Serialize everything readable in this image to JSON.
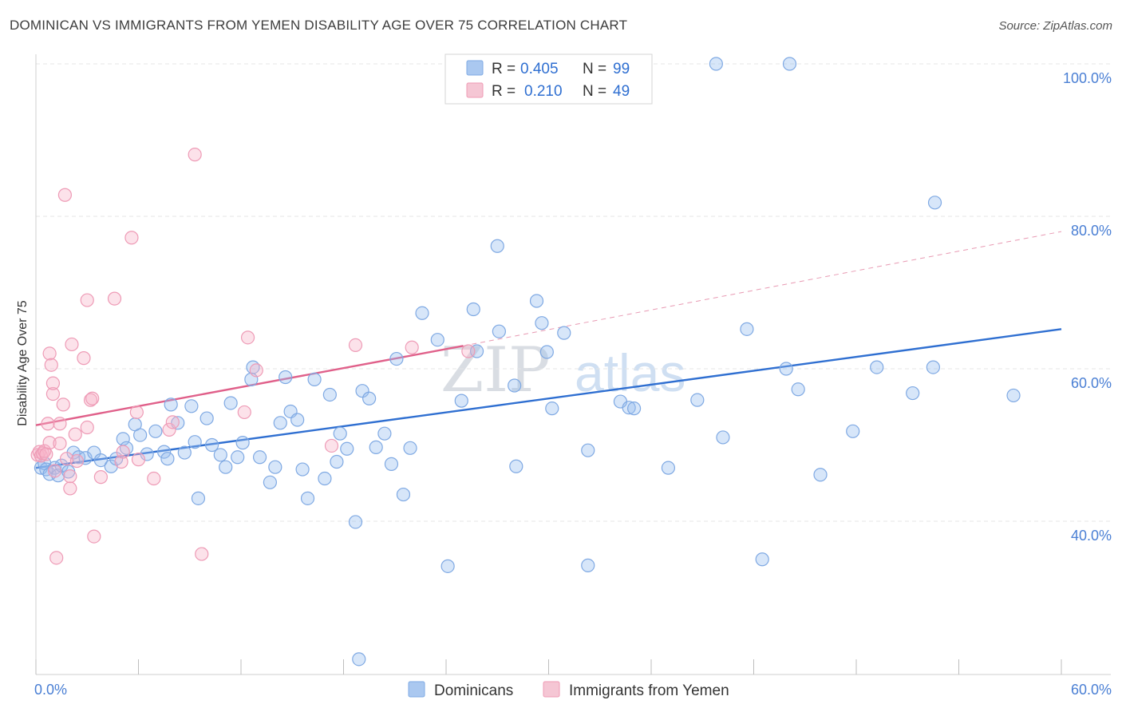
{
  "title": "DOMINICAN VS IMMIGRANTS FROM YEMEN DISABILITY AGE OVER 75 CORRELATION CHART",
  "source": "Source: ZipAtlas.com",
  "watermark": {
    "part1": "ZIP",
    "part2": "atlas"
  },
  "legend": {
    "rows": [
      {
        "r_label": "R =",
        "r_value": "0.405",
        "n_label": "N =",
        "n_value": "99",
        "color": "#aac8f0"
      },
      {
        "r_label": "R =",
        "r_value": "0.210",
        "n_label": "N =",
        "n_value": "49",
        "color": "#f5b8cb"
      }
    ]
  },
  "bottom_legend": [
    {
      "label": "Dominicans",
      "color": "#aac8f0"
    },
    {
      "label": "Immigrants from Yemen",
      "color": "#f5b8cb"
    }
  ],
  "chart_data": {
    "type": "scatter",
    "title": "DOMINICAN VS IMMIGRANTS FROM YEMEN DISABILITY AGE OVER 75 CORRELATION CHART",
    "xlabel": "",
    "ylabel": "Disability Age Over 75",
    "xlim": [
      0,
      60
    ],
    "ylim": [
      20,
      102
    ],
    "x_tick_labels": [
      "0.0%",
      "60.0%"
    ],
    "y_ticks": [
      40,
      60,
      80,
      100
    ],
    "y_tick_labels": [
      "40.0%",
      "60.0%",
      "80.0%",
      "100.0%"
    ],
    "grid": true,
    "legend_position": "top-center",
    "series": [
      {
        "name": "Dominicans",
        "color": "#6fa3e8",
        "trend": {
          "x": [
            0,
            60
          ],
          "y": [
            47.0,
            65.2
          ],
          "color": "#2f6fd1"
        },
        "points": [
          [
            0.3,
            47.0
          ],
          [
            0.5,
            47.6
          ],
          [
            0.6,
            46.8
          ],
          [
            0.8,
            46.2
          ],
          [
            1.1,
            47.0
          ],
          [
            1.3,
            46.0
          ],
          [
            1.5,
            47.3
          ],
          [
            1.9,
            46.5
          ],
          [
            2.2,
            49.0
          ],
          [
            2.5,
            48.4
          ],
          [
            2.9,
            48.3
          ],
          [
            3.4,
            49.0
          ],
          [
            3.8,
            48.0
          ],
          [
            4.4,
            47.2
          ],
          [
            4.7,
            48.2
          ],
          [
            5.1,
            50.8
          ],
          [
            5.3,
            49.6
          ],
          [
            5.8,
            52.7
          ],
          [
            6.1,
            51.3
          ],
          [
            6.5,
            48.8
          ],
          [
            7.0,
            51.8
          ],
          [
            7.5,
            49.1
          ],
          [
            7.7,
            48.2
          ],
          [
            7.9,
            55.3
          ],
          [
            8.3,
            52.9
          ],
          [
            8.7,
            49.0
          ],
          [
            9.1,
            55.1
          ],
          [
            9.3,
            50.4
          ],
          [
            9.5,
            43.0
          ],
          [
            10.0,
            53.5
          ],
          [
            10.3,
            50.0
          ],
          [
            10.8,
            48.7
          ],
          [
            11.1,
            47.1
          ],
          [
            11.4,
            55.5
          ],
          [
            11.8,
            48.4
          ],
          [
            12.1,
            50.3
          ],
          [
            12.6,
            58.6
          ],
          [
            12.7,
            60.2
          ],
          [
            13.1,
            48.4
          ],
          [
            13.7,
            45.1
          ],
          [
            14.0,
            47.1
          ],
          [
            14.3,
            52.9
          ],
          [
            14.6,
            58.9
          ],
          [
            14.9,
            54.4
          ],
          [
            15.3,
            53.3
          ],
          [
            15.6,
            46.8
          ],
          [
            15.9,
            43.0
          ],
          [
            16.3,
            58.6
          ],
          [
            16.9,
            45.6
          ],
          [
            17.2,
            56.6
          ],
          [
            17.6,
            47.8
          ],
          [
            17.8,
            51.5
          ],
          [
            18.2,
            49.5
          ],
          [
            18.7,
            39.9
          ],
          [
            19.1,
            57.1
          ],
          [
            19.5,
            56.1
          ],
          [
            19.9,
            49.7
          ],
          [
            20.4,
            51.5
          ],
          [
            20.8,
            47.5
          ],
          [
            21.1,
            61.3
          ],
          [
            21.5,
            43.5
          ],
          [
            21.9,
            49.6
          ],
          [
            22.6,
            67.3
          ],
          [
            23.5,
            63.8
          ],
          [
            24.1,
            34.1
          ],
          [
            24.9,
            55.8
          ],
          [
            25.6,
            67.8
          ],
          [
            25.8,
            62.3
          ],
          [
            27.0,
            76.1
          ],
          [
            27.1,
            64.9
          ],
          [
            28.0,
            57.8
          ],
          [
            28.1,
            47.2
          ],
          [
            29.3,
            68.9
          ],
          [
            29.6,
            66.0
          ],
          [
            29.9,
            62.2
          ],
          [
            30.2,
            54.8
          ],
          [
            30.9,
            64.7
          ],
          [
            32.3,
            49.3
          ],
          [
            32.3,
            34.2
          ],
          [
            34.2,
            55.7
          ],
          [
            34.7,
            54.9
          ],
          [
            35.0,
            54.8
          ],
          [
            37.0,
            47.0
          ],
          [
            38.7,
            55.9
          ],
          [
            39.8,
            100.0
          ],
          [
            40.2,
            51.0
          ],
          [
            41.6,
            65.2
          ],
          [
            42.5,
            35.0
          ],
          [
            44.1,
            100.0
          ],
          [
            43.9,
            60.0
          ],
          [
            44.6,
            57.3
          ],
          [
            45.9,
            46.1
          ],
          [
            47.8,
            51.8
          ],
          [
            49.2,
            60.2
          ],
          [
            51.3,
            56.8
          ],
          [
            52.5,
            60.2
          ],
          [
            52.6,
            81.8
          ],
          [
            57.2,
            56.5
          ],
          [
            18.9,
            21.9
          ]
        ]
      },
      {
        "name": "Immigrants from Yemen",
        "color": "#f08fab",
        "trend": {
          "x": [
            0,
            25
          ],
          "y": [
            52.6,
            63.0
          ],
          "color": "#e0608a"
        },
        "trend_extension": {
          "x": [
            25,
            60
          ],
          "y": [
            63.0,
            78.0
          ],
          "color": "#e89ab3"
        },
        "points": [
          [
            0.1,
            48.7
          ],
          [
            0.2,
            49.1
          ],
          [
            0.3,
            48.6
          ],
          [
            0.4,
            48.9
          ],
          [
            0.5,
            49.2
          ],
          [
            0.6,
            48.8
          ],
          [
            0.7,
            52.8
          ],
          [
            0.8,
            50.3
          ],
          [
            0.8,
            62.0
          ],
          [
            0.9,
            60.5
          ],
          [
            1.0,
            56.7
          ],
          [
            1.0,
            58.1
          ],
          [
            1.1,
            46.6
          ],
          [
            1.2,
            35.2
          ],
          [
            1.4,
            50.2
          ],
          [
            1.4,
            52.8
          ],
          [
            1.6,
            55.3
          ],
          [
            1.7,
            82.8
          ],
          [
            1.8,
            48.2
          ],
          [
            2.0,
            45.9
          ],
          [
            2.0,
            44.3
          ],
          [
            2.1,
            63.2
          ],
          [
            2.3,
            51.4
          ],
          [
            2.4,
            47.9
          ],
          [
            2.8,
            61.4
          ],
          [
            3.0,
            69.0
          ],
          [
            3.0,
            52.3
          ],
          [
            3.2,
            55.9
          ],
          [
            3.3,
            56.1
          ],
          [
            3.4,
            38.0
          ],
          [
            3.8,
            45.8
          ],
          [
            4.6,
            69.2
          ],
          [
            5.0,
            47.8
          ],
          [
            5.1,
            49.1
          ],
          [
            5.6,
            77.2
          ],
          [
            5.9,
            54.3
          ],
          [
            6.0,
            48.1
          ],
          [
            6.9,
            45.6
          ],
          [
            7.8,
            52.0
          ],
          [
            8.0,
            53.0
          ],
          [
            9.3,
            88.1
          ],
          [
            9.7,
            35.7
          ],
          [
            12.2,
            54.3
          ],
          [
            12.4,
            64.1
          ],
          [
            12.9,
            59.8
          ],
          [
            17.3,
            49.9
          ],
          [
            18.7,
            63.1
          ],
          [
            22.0,
            62.8
          ],
          [
            25.3,
            62.3
          ]
        ]
      }
    ]
  }
}
